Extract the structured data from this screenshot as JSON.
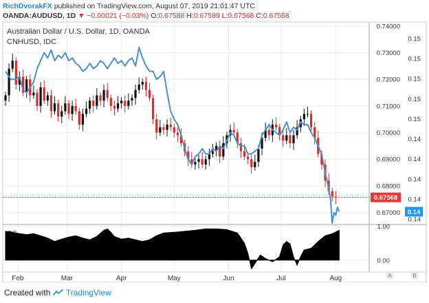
{
  "header": {
    "author": "RichDvorakFX",
    "published": "published on TradingView.com, August 07, 2019 21:01:47 UTC"
  },
  "ohlc": {
    "symbol": "OANDA:AUDUSD, 1D",
    "change": "−0.00021 (−0.03%)",
    "o_label": "O:",
    "o": "0.67588",
    "h_label": "H:",
    "h": "0.67589",
    "l_label": "L:",
    "l": "0.67568",
    "c_label": "C:",
    "c": "0.67568"
  },
  "footer": {
    "created_with": "Created with",
    "brand": "TradingView"
  },
  "colors": {
    "up": "#111111",
    "down": "#d32f2f",
    "line": "#4a90c8",
    "grid": "#e8ecf0",
    "label_red": "#e53935",
    "label_blue": "#2196f3"
  },
  "chart_data": [
    {
      "type": "candlestick",
      "title": "Australian Dollar / U.S. Dollar, 1D, OANDA",
      "subtitle": "CNHUSD, IDC",
      "x_labels": [
        "Feb",
        "Mar",
        "Apr",
        "May",
        "Jun",
        "Jul",
        "Aug"
      ],
      "x_label_days": [
        7,
        35,
        66,
        96,
        127,
        157,
        188
      ],
      "y_axis_left_ticks": [
        0.67,
        0.68,
        0.69,
        0.7,
        0.71,
        0.72,
        0.73,
        0.74
      ],
      "y_axis_left_labels": [
        "0.67000",
        "0.68000",
        "0.69000",
        "0.70000",
        "0.71000",
        "0.72000",
        "0.73000",
        "0.74000"
      ],
      "y_axis_right_labels": [
        "0.15",
        "0.15",
        "0.15",
        "0.15",
        "0.15",
        "0.14",
        "0.14",
        "0.14",
        "0.14",
        "0.14"
      ],
      "ylim": [
        0.6655,
        0.7415
      ],
      "xlim": [
        0,
        200
      ],
      "last_price_label": "0.67568",
      "last_price": 0.67568,
      "cnh_label": "0.14",
      "cnh_label_position_price": 0.6703,
      "grid": true,
      "audusd_close_points": [
        [
          0,
          0.714
        ],
        [
          2,
          0.724
        ],
        [
          4,
          0.727
        ],
        [
          6,
          0.718
        ],
        [
          8,
          0.721
        ],
        [
          10,
          0.715
        ],
        [
          12,
          0.72
        ],
        [
          14,
          0.714
        ],
        [
          16,
          0.715
        ],
        [
          18,
          0.71
        ],
        [
          20,
          0.717
        ],
        [
          22,
          0.712
        ],
        [
          24,
          0.714
        ],
        [
          26,
          0.708
        ],
        [
          28,
          0.711
        ],
        [
          30,
          0.706
        ],
        [
          32,
          0.708
        ],
        [
          34,
          0.711
        ],
        [
          36,
          0.707
        ],
        [
          38,
          0.71
        ],
        [
          40,
          0.708
        ],
        [
          42,
          0.703
        ],
        [
          44,
          0.707
        ],
        [
          46,
          0.709
        ],
        [
          48,
          0.712
        ],
        [
          50,
          0.71
        ],
        [
          52,
          0.714
        ],
        [
          54,
          0.712
        ],
        [
          56,
          0.716
        ],
        [
          58,
          0.713
        ],
        [
          60,
          0.71
        ],
        [
          62,
          0.709
        ],
        [
          64,
          0.711
        ],
        [
          66,
          0.712
        ],
        [
          68,
          0.71
        ],
        [
          70,
          0.712
        ],
        [
          72,
          0.713
        ],
        [
          74,
          0.716
        ],
        [
          76,
          0.718
        ],
        [
          78,
          0.719
        ],
        [
          80,
          0.716
        ],
        [
          82,
          0.713
        ],
        [
          84,
          0.705
        ],
        [
          86,
          0.7
        ],
        [
          88,
          0.702
        ],
        [
          90,
          0.701
        ],
        [
          92,
          0.703
        ],
        [
          94,
          0.702
        ],
        [
          96,
          0.7
        ],
        [
          98,
          0.699
        ],
        [
          100,
          0.696
        ],
        [
          102,
          0.693
        ],
        [
          104,
          0.69
        ],
        [
          106,
          0.688
        ],
        [
          108,
          0.689
        ],
        [
          110,
          0.69
        ],
        [
          112,
          0.688
        ],
        [
          114,
          0.69
        ],
        [
          116,
          0.692
        ],
        [
          118,
          0.693
        ],
        [
          120,
          0.695
        ],
        [
          122,
          0.691
        ],
        [
          124,
          0.696
        ],
        [
          126,
          0.699
        ],
        [
          128,
          0.701
        ],
        [
          130,
          0.7
        ],
        [
          132,
          0.696
        ],
        [
          134,
          0.693
        ],
        [
          136,
          0.691
        ],
        [
          138,
          0.69
        ],
        [
          140,
          0.687
        ],
        [
          142,
          0.689
        ],
        [
          144,
          0.694
        ],
        [
          146,
          0.698
        ],
        [
          148,
          0.701
        ],
        [
          150,
          0.699
        ],
        [
          152,
          0.703
        ],
        [
          154,
          0.702
        ],
        [
          156,
          0.699
        ],
        [
          158,
          0.697
        ],
        [
          160,
          0.699
        ],
        [
          162,
          0.696
        ],
        [
          164,
          0.699
        ],
        [
          166,
          0.702
        ],
        [
          168,
          0.705
        ],
        [
          170,
          0.707
        ],
        [
          172,
          0.707
        ],
        [
          174,
          0.702
        ],
        [
          176,
          0.698
        ],
        [
          178,
          0.692
        ],
        [
          180,
          0.688
        ],
        [
          182,
          0.682
        ],
        [
          184,
          0.678
        ],
        [
          186,
          0.676
        ],
        [
          188,
          0.6757
        ]
      ],
      "cnhusd_line_points": [
        [
          0,
          0.723
        ],
        [
          3,
          0.72
        ],
        [
          6,
          0.72
        ],
        [
          8,
          0.721
        ],
        [
          10,
          0.716
        ],
        [
          12,
          0.715
        ],
        [
          14,
          0.717
        ],
        [
          16,
          0.719
        ],
        [
          18,
          0.724
        ],
        [
          20,
          0.727
        ],
        [
          22,
          0.73
        ],
        [
          24,
          0.728
        ],
        [
          26,
          0.731
        ],
        [
          28,
          0.727
        ],
        [
          30,
          0.729
        ],
        [
          32,
          0.728
        ],
        [
          34,
          0.73
        ],
        [
          36,
          0.727
        ],
        [
          38,
          0.728
        ],
        [
          40,
          0.726
        ],
        [
          42,
          0.725
        ],
        [
          44,
          0.723
        ],
        [
          46,
          0.724
        ],
        [
          48,
          0.726
        ],
        [
          50,
          0.724
        ],
        [
          52,
          0.725
        ],
        [
          54,
          0.727
        ],
        [
          56,
          0.726
        ],
        [
          58,
          0.724
        ],
        [
          60,
          0.726
        ],
        [
          62,
          0.728
        ],
        [
          64,
          0.726
        ],
        [
          66,
          0.727
        ],
        [
          68,
          0.725
        ],
        [
          70,
          0.727
        ],
        [
          72,
          0.728
        ],
        [
          74,
          0.725
        ],
        [
          76,
          0.732
        ],
        [
          78,
          0.728
        ],
        [
          80,
          0.725
        ],
        [
          82,
          0.723
        ],
        [
          84,
          0.723
        ],
        [
          86,
          0.72
        ],
        [
          88,
          0.721
        ],
        [
          90,
          0.723
        ],
        [
          92,
          0.715
        ],
        [
          94,
          0.708
        ],
        [
          96,
          0.705
        ],
        [
          98,
          0.703
        ],
        [
          100,
          0.699
        ],
        [
          102,
          0.694
        ],
        [
          104,
          0.69
        ],
        [
          106,
          0.688
        ],
        [
          108,
          0.691
        ],
        [
          110,
          0.692
        ],
        [
          112,
          0.694
        ],
        [
          114,
          0.692
        ],
        [
          116,
          0.692
        ],
        [
          118,
          0.694
        ],
        [
          120,
          0.693
        ],
        [
          122,
          0.695
        ],
        [
          124,
          0.694
        ],
        [
          126,
          0.697
        ],
        [
          128,
          0.7
        ],
        [
          130,
          0.699
        ],
        [
          132,
          0.696
        ],
        [
          134,
          0.695
        ],
        [
          136,
          0.695
        ],
        [
          138,
          0.692
        ],
        [
          140,
          0.692
        ],
        [
          142,
          0.693
        ],
        [
          144,
          0.694
        ],
        [
          146,
          0.699
        ],
        [
          148,
          0.701
        ],
        [
          150,
          0.703
        ],
        [
          152,
          0.701
        ],
        [
          154,
          0.7
        ],
        [
          156,
          0.699
        ],
        [
          158,
          0.701
        ],
        [
          160,
          0.704
        ],
        [
          162,
          0.7
        ],
        [
          164,
          0.702
        ],
        [
          166,
          0.701
        ],
        [
          168,
          0.704
        ],
        [
          170,
          0.703
        ],
        [
          172,
          0.703
        ],
        [
          174,
          0.7
        ],
        [
          176,
          0.698
        ],
        [
          178,
          0.695
        ],
        [
          180,
          0.692
        ],
        [
          182,
          0.685
        ],
        [
          184,
          0.679
        ],
        [
          185,
          0.675
        ],
        [
          186,
          0.666
        ],
        [
          187,
          0.67
        ],
        [
          188,
          0.669
        ],
        [
          189,
          0.672
        ],
        [
          190,
          0.6703
        ]
      ]
    },
    {
      "type": "area",
      "title": "CC",
      "y_axis_labels": [
        "1.00",
        "0.00"
      ],
      "y_axis_ticks": [
        1.0,
        0.0
      ],
      "ylim": [
        -0.35,
        1.05
      ],
      "xlim": [
        0,
        200
      ],
      "points": [
        [
          0,
          0.85
        ],
        [
          4,
          0.82
        ],
        [
          8,
          0.78
        ],
        [
          12,
          0.75
        ],
        [
          16,
          0.78
        ],
        [
          20,
          0.72
        ],
        [
          24,
          0.65
        ],
        [
          28,
          0.55
        ],
        [
          32,
          0.62
        ],
        [
          36,
          0.68
        ],
        [
          40,
          0.72
        ],
        [
          44,
          0.65
        ],
        [
          48,
          0.6
        ],
        [
          52,
          0.7
        ],
        [
          56,
          0.88
        ],
        [
          58,
          0.92
        ],
        [
          60,
          0.82
        ],
        [
          62,
          0.7
        ],
        [
          66,
          0.62
        ],
        [
          70,
          0.65
        ],
        [
          74,
          0.6
        ],
        [
          78,
          0.55
        ],
        [
          82,
          0.6
        ],
        [
          86,
          0.72
        ],
        [
          90,
          0.8
        ],
        [
          96,
          0.82
        ],
        [
          102,
          0.85
        ],
        [
          108,
          0.88
        ],
        [
          114,
          0.92
        ],
        [
          120,
          0.92
        ],
        [
          126,
          0.9
        ],
        [
          132,
          0.8
        ],
        [
          136,
          0.5
        ],
        [
          138,
          0.2
        ],
        [
          140,
          -0.25
        ],
        [
          142,
          -0.1
        ],
        [
          145,
          0.15
        ],
        [
          148,
          0.05
        ],
        [
          152,
          -0.05
        ],
        [
          156,
          0.1
        ],
        [
          158,
          0.45
        ],
        [
          160,
          0.55
        ],
        [
          162,
          0.48
        ],
        [
          164,
          0.1
        ],
        [
          166,
          -0.15
        ],
        [
          168,
          0.1
        ],
        [
          170,
          0.3
        ],
        [
          174,
          0.35
        ],
        [
          178,
          0.55
        ],
        [
          182,
          0.72
        ],
        [
          186,
          0.78
        ],
        [
          190,
          0.88
        ]
      ]
    }
  ]
}
